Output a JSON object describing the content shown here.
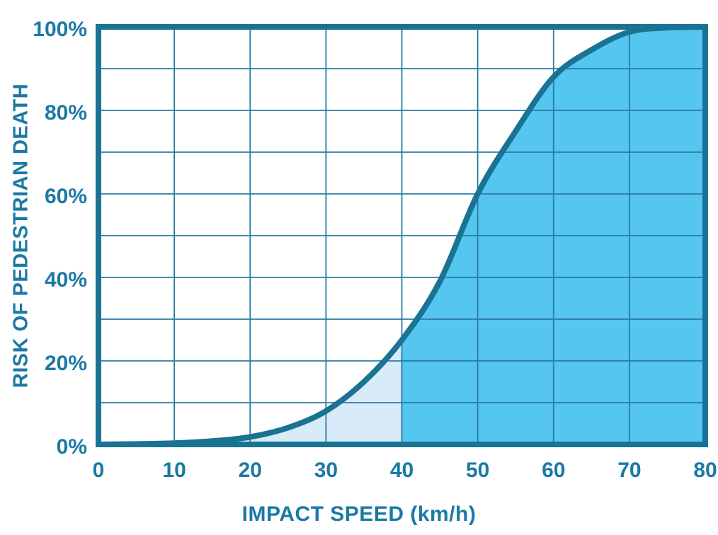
{
  "page": {
    "background": "#FFFFFF"
  },
  "chart_data": {
    "type": "area",
    "title": "",
    "xlabel": "IMPACT SPEED (km/h)",
    "ylabel": "RISK OF PEDESTRIAN DEATH",
    "xlim": [
      0,
      80
    ],
    "ylim": [
      0,
      100
    ],
    "x_ticks": [
      0,
      10,
      20,
      30,
      40,
      50,
      60,
      70,
      80
    ],
    "y_ticks": [
      0,
      20,
      40,
      60,
      80,
      100
    ],
    "y_tick_suffix": "%",
    "grid": {
      "on": true,
      "step_x": 10,
      "step_y": 10,
      "color": "#2A7BA4",
      "width": 1.8
    },
    "series": [
      {
        "name": "risk_of_pedestrian_death",
        "x": [
          0,
          5,
          10,
          15,
          20,
          25,
          30,
          35,
          40,
          45,
          50,
          55,
          60,
          65,
          70,
          75,
          80
        ],
        "y": [
          0,
          0.1,
          0.3,
          0.8,
          1.8,
          4,
          8,
          15,
          25,
          39,
          60,
          75,
          88,
          94.5,
          98.8,
          99.8,
          100
        ]
      }
    ],
    "annotations": {
      "fill_split_x": 40
    },
    "colors": {
      "line": "#1A7392",
      "border": "#1A7392",
      "area_below_split": "#D8EBF8",
      "area_above_split": "#55C6EF",
      "axis_label": "#1B79A5",
      "tick_label": "#1B79A5"
    },
    "legend_position": "none"
  }
}
